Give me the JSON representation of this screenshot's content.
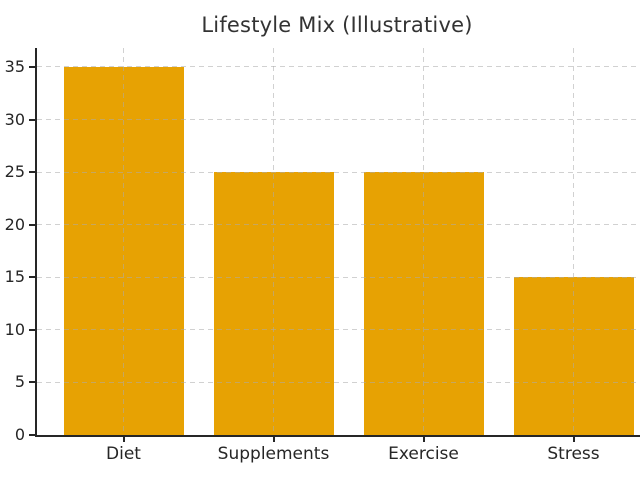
{
  "chart_data": {
    "type": "bar",
    "title": "Lifestyle Mix (Illustrative)",
    "categories": [
      "Diet",
      "Supplements",
      "Exercise",
      "Stress"
    ],
    "values": [
      35,
      25,
      25,
      15
    ],
    "xlabel": "",
    "ylabel": "",
    "yticks": [
      0,
      5,
      10,
      15,
      20,
      25,
      30,
      35
    ],
    "ylim": [
      0,
      36.8
    ],
    "grid": "both",
    "grid_style": "dashed",
    "legend": "none",
    "colors": {
      "background": "#FFFFFF",
      "bar": "#E7A203",
      "grid": "#ABABAB",
      "axis": "#262626",
      "tick_label": "#262626",
      "title": "#333333"
    }
  }
}
